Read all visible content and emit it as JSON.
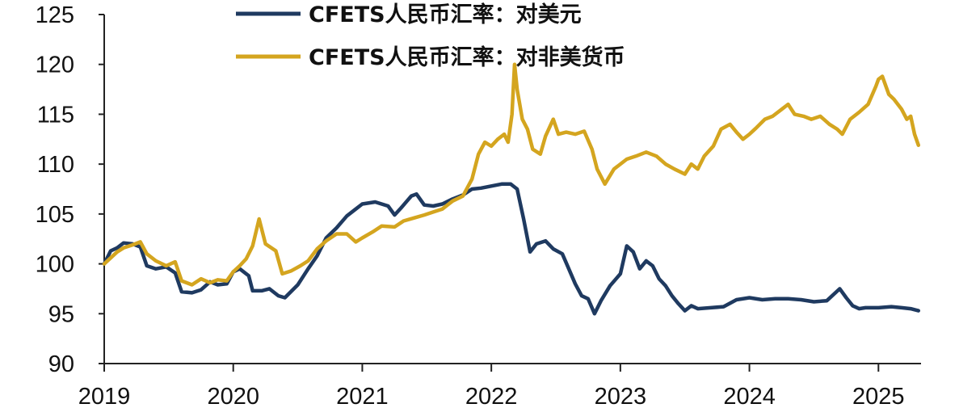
{
  "chart_data": {
    "type": "line",
    "title": "",
    "xlabel": "",
    "ylabel": "",
    "x_ticks": [
      "2019",
      "2020",
      "2021",
      "2022",
      "2023",
      "2024",
      "2025"
    ],
    "y_ticks": [
      "90",
      "95",
      "100",
      "105",
      "110",
      "115",
      "120",
      "125"
    ],
    "xlim": [
      2019.0,
      2025.33
    ],
    "ylim": [
      90,
      125
    ],
    "grid": false,
    "legend_position": "top",
    "series": [
      {
        "name": "CFETS人民币汇率：对美元",
        "color": "#1f3a60",
        "points": [
          [
            2019.0,
            100.0
          ],
          [
            2019.05,
            101.3
          ],
          [
            2019.1,
            101.6
          ],
          [
            2019.15,
            102.1
          ],
          [
            2019.22,
            102.0
          ],
          [
            2019.28,
            101.7
          ],
          [
            2019.33,
            99.8
          ],
          [
            2019.4,
            99.5
          ],
          [
            2019.48,
            99.7
          ],
          [
            2019.55,
            99.1
          ],
          [
            2019.6,
            97.2
          ],
          [
            2019.68,
            97.1
          ],
          [
            2019.75,
            97.4
          ],
          [
            2019.82,
            98.2
          ],
          [
            2019.88,
            97.9
          ],
          [
            2019.95,
            98.0
          ],
          [
            2020.0,
            99.2
          ],
          [
            2020.05,
            99.5
          ],
          [
            2020.12,
            98.8
          ],
          [
            2020.15,
            97.3
          ],
          [
            2020.22,
            97.3
          ],
          [
            2020.28,
            97.5
          ],
          [
            2020.35,
            96.8
          ],
          [
            2020.4,
            96.6
          ],
          [
            2020.5,
            97.9
          ],
          [
            2020.58,
            99.5
          ],
          [
            2020.65,
            100.8
          ],
          [
            2020.72,
            102.6
          ],
          [
            2020.8,
            103.6
          ],
          [
            2020.88,
            104.8
          ],
          [
            2020.95,
            105.5
          ],
          [
            2021.0,
            106.0
          ],
          [
            2021.1,
            106.2
          ],
          [
            2021.2,
            105.8
          ],
          [
            2021.25,
            104.9
          ],
          [
            2021.3,
            105.6
          ],
          [
            2021.38,
            106.8
          ],
          [
            2021.42,
            107.0
          ],
          [
            2021.48,
            105.9
          ],
          [
            2021.55,
            105.8
          ],
          [
            2021.62,
            106.0
          ],
          [
            2021.7,
            106.5
          ],
          [
            2021.78,
            106.9
          ],
          [
            2021.85,
            107.5
          ],
          [
            2021.92,
            107.6
          ],
          [
            2022.0,
            107.8
          ],
          [
            2022.08,
            108.0
          ],
          [
            2022.15,
            108.0
          ],
          [
            2022.2,
            107.5
          ],
          [
            2022.25,
            104.5
          ],
          [
            2022.3,
            101.2
          ],
          [
            2022.35,
            102.0
          ],
          [
            2022.42,
            102.3
          ],
          [
            2022.48,
            101.5
          ],
          [
            2022.55,
            101.0
          ],
          [
            2022.6,
            99.5
          ],
          [
            2022.65,
            98.0
          ],
          [
            2022.7,
            96.8
          ],
          [
            2022.75,
            96.5
          ],
          [
            2022.8,
            95.0
          ],
          [
            2022.85,
            96.3
          ],
          [
            2022.92,
            97.8
          ],
          [
            2023.0,
            99.0
          ],
          [
            2023.05,
            101.8
          ],
          [
            2023.1,
            101.2
          ],
          [
            2023.15,
            99.5
          ],
          [
            2023.2,
            100.3
          ],
          [
            2023.25,
            99.8
          ],
          [
            2023.3,
            98.5
          ],
          [
            2023.35,
            97.8
          ],
          [
            2023.4,
            96.8
          ],
          [
            2023.45,
            96.0
          ],
          [
            2023.5,
            95.3
          ],
          [
            2023.55,
            95.8
          ],
          [
            2023.6,
            95.5
          ],
          [
            2023.7,
            95.6
          ],
          [
            2023.8,
            95.7
          ],
          [
            2023.9,
            96.4
          ],
          [
            2024.0,
            96.6
          ],
          [
            2024.1,
            96.4
          ],
          [
            2024.2,
            96.5
          ],
          [
            2024.3,
            96.5
          ],
          [
            2024.4,
            96.4
          ],
          [
            2024.5,
            96.2
          ],
          [
            2024.6,
            96.3
          ],
          [
            2024.7,
            97.5
          ],
          [
            2024.75,
            96.6
          ],
          [
            2024.8,
            95.8
          ],
          [
            2024.85,
            95.5
          ],
          [
            2024.9,
            95.6
          ],
          [
            2025.0,
            95.6
          ],
          [
            2025.1,
            95.7
          ],
          [
            2025.18,
            95.6
          ],
          [
            2025.25,
            95.5
          ],
          [
            2025.31,
            95.3
          ]
        ]
      },
      {
        "name": "CFETS人民币汇率：对非美货币",
        "color": "#d4a51f",
        "points": [
          [
            2019.0,
            100.0
          ],
          [
            2019.05,
            100.6
          ],
          [
            2019.1,
            101.2
          ],
          [
            2019.15,
            101.6
          ],
          [
            2019.22,
            101.9
          ],
          [
            2019.28,
            102.2
          ],
          [
            2019.33,
            101.0
          ],
          [
            2019.4,
            100.3
          ],
          [
            2019.48,
            99.8
          ],
          [
            2019.55,
            100.2
          ],
          [
            2019.6,
            98.3
          ],
          [
            2019.68,
            97.9
          ],
          [
            2019.75,
            98.5
          ],
          [
            2019.82,
            98.1
          ],
          [
            2019.88,
            98.4
          ],
          [
            2019.95,
            98.3
          ],
          [
            2020.0,
            99.2
          ],
          [
            2020.05,
            99.8
          ],
          [
            2020.1,
            100.5
          ],
          [
            2020.15,
            101.8
          ],
          [
            2020.2,
            104.5
          ],
          [
            2020.25,
            102.0
          ],
          [
            2020.33,
            101.3
          ],
          [
            2020.38,
            99.0
          ],
          [
            2020.45,
            99.3
          ],
          [
            2020.52,
            99.8
          ],
          [
            2020.58,
            100.3
          ],
          [
            2020.65,
            101.5
          ],
          [
            2020.72,
            102.3
          ],
          [
            2020.8,
            103.0
          ],
          [
            2020.88,
            103.0
          ],
          [
            2020.95,
            102.2
          ],
          [
            2021.0,
            102.6
          ],
          [
            2021.08,
            103.2
          ],
          [
            2021.15,
            103.8
          ],
          [
            2021.25,
            103.7
          ],
          [
            2021.32,
            104.3
          ],
          [
            2021.4,
            104.6
          ],
          [
            2021.48,
            104.9
          ],
          [
            2021.55,
            105.2
          ],
          [
            2021.62,
            105.5
          ],
          [
            2021.7,
            106.3
          ],
          [
            2021.78,
            106.8
          ],
          [
            2021.85,
            108.5
          ],
          [
            2021.9,
            111.0
          ],
          [
            2021.95,
            112.2
          ],
          [
            2022.0,
            111.8
          ],
          [
            2022.05,
            112.5
          ],
          [
            2022.1,
            113.0
          ],
          [
            2022.13,
            112.2
          ],
          [
            2022.16,
            115.0
          ],
          [
            2022.18,
            120.0
          ],
          [
            2022.2,
            117.5
          ],
          [
            2022.24,
            114.5
          ],
          [
            2022.28,
            113.5
          ],
          [
            2022.32,
            111.5
          ],
          [
            2022.38,
            111.0
          ],
          [
            2022.42,
            112.8
          ],
          [
            2022.48,
            114.5
          ],
          [
            2022.52,
            113.0
          ],
          [
            2022.58,
            113.2
          ],
          [
            2022.65,
            113.0
          ],
          [
            2022.72,
            113.3
          ],
          [
            2022.78,
            111.5
          ],
          [
            2022.82,
            109.5
          ],
          [
            2022.88,
            108.0
          ],
          [
            2022.95,
            109.5
          ],
          [
            2023.0,
            110.0
          ],
          [
            2023.05,
            110.5
          ],
          [
            2023.12,
            110.8
          ],
          [
            2023.2,
            111.2
          ],
          [
            2023.28,
            110.8
          ],
          [
            2023.35,
            110.0
          ],
          [
            2023.42,
            109.5
          ],
          [
            2023.5,
            109.0
          ],
          [
            2023.55,
            110.0
          ],
          [
            2023.6,
            109.5
          ],
          [
            2023.65,
            110.8
          ],
          [
            2023.72,
            111.8
          ],
          [
            2023.78,
            113.5
          ],
          [
            2023.85,
            114.0
          ],
          [
            2023.9,
            113.2
          ],
          [
            2023.95,
            112.5
          ],
          [
            2024.0,
            113.0
          ],
          [
            2024.05,
            113.6
          ],
          [
            2024.12,
            114.5
          ],
          [
            2024.18,
            114.8
          ],
          [
            2024.25,
            115.5
          ],
          [
            2024.3,
            116.0
          ],
          [
            2024.35,
            115.0
          ],
          [
            2024.42,
            114.8
          ],
          [
            2024.48,
            114.5
          ],
          [
            2024.55,
            114.8
          ],
          [
            2024.62,
            114.0
          ],
          [
            2024.68,
            113.5
          ],
          [
            2024.72,
            113.0
          ],
          [
            2024.78,
            114.5
          ],
          [
            2024.85,
            115.2
          ],
          [
            2024.92,
            116.0
          ],
          [
            2024.98,
            117.8
          ],
          [
            2025.0,
            118.5
          ],
          [
            2025.03,
            118.8
          ],
          [
            2025.08,
            117.0
          ],
          [
            2025.12,
            116.5
          ],
          [
            2025.18,
            115.5
          ],
          [
            2025.22,
            114.5
          ],
          [
            2025.25,
            114.8
          ],
          [
            2025.28,
            113.0
          ],
          [
            2025.31,
            111.9
          ]
        ]
      }
    ]
  }
}
